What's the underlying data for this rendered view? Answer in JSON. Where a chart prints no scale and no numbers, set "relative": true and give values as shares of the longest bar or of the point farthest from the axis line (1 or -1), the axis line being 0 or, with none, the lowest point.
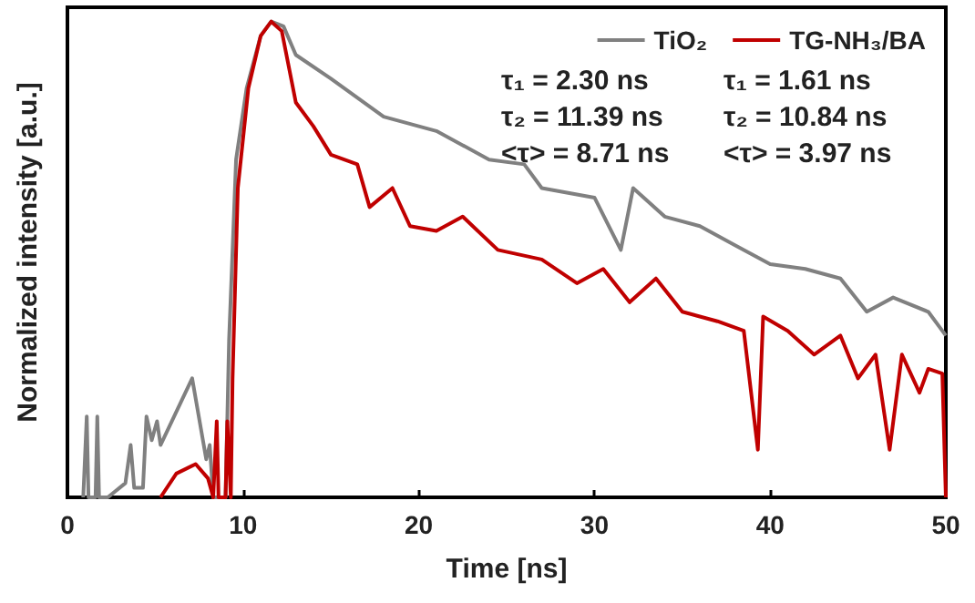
{
  "chart_data": {
    "type": "line",
    "xlabel": "Time [ns]",
    "ylabel": "Normalized intensity [a.u.]",
    "xlim": [
      0,
      50
    ],
    "xticks": [
      0,
      10,
      20,
      30,
      40,
      50
    ],
    "relative": true,
    "tick_labels": "x",
    "grid": false,
    "legend": "top right",
    "marker": "none",
    "line_style": "solid",
    "annotations": [
      "τ₁ = 2.30 ns",
      "τ₂ = 11.39 ns",
      "<τ> = 8.71 ns",
      "τ₁ = 1.61 ns",
      "τ₂ = 10.84 ns",
      "<τ> = 3.97 ns"
    ],
    "series": [
      {
        "name": "TiO₂",
        "color": "#808080",
        "x": [
          0.9,
          1.1,
          1.2,
          1.6,
          1.7,
          1.8,
          2.3,
          3.3,
          3.6,
          3.8,
          4.3,
          4.5,
          4.8,
          5.1,
          5.3,
          7.1,
          7.9,
          8.1,
          8.3,
          9.0,
          9.2,
          9.6,
          10.2,
          11,
          11.6,
          12.3,
          13,
          15,
          18,
          21,
          24,
          26,
          27,
          30,
          31.5,
          32.2,
          34,
          36,
          38,
          40,
          42,
          44,
          45.5,
          47,
          49,
          50
        ],
        "values": [
          0,
          0.17,
          0,
          0,
          0.17,
          0,
          0,
          0.03,
          0.11,
          0.02,
          0.02,
          0.17,
          0.12,
          0.16,
          0.11,
          0.25,
          0.08,
          0.11,
          0,
          0,
          0.33,
          0.71,
          0.86,
          0.97,
          1,
          0.99,
          0.93,
          0.88,
          0.8,
          0.77,
          0.71,
          0.7,
          0.65,
          0.63,
          0.52,
          0.65,
          0.59,
          0.57,
          0.53,
          0.49,
          0.48,
          0.46,
          0.39,
          0.42,
          0.39,
          0.34
        ]
      },
      {
        "name": "TG-NH₃/BA",
        "color": "#c00000",
        "x": [
          5.3,
          6.2,
          7.3,
          8.0,
          8.3,
          8.5,
          8.6,
          9.0,
          9.1,
          9.3,
          9.4,
          9.7,
          10.3,
          11,
          11.6,
          12.2,
          13,
          14,
          15,
          16.5,
          17.2,
          18.5,
          19.5,
          21,
          22.5,
          24.5,
          27,
          29,
          30.5,
          32,
          33.5,
          35,
          37,
          38.5,
          39.3,
          39.6,
          41,
          42.5,
          44,
          45,
          46,
          46.8,
          47.5,
          48.5,
          49,
          49.8,
          50
        ],
        "values": [
          0,
          0.05,
          0.07,
          0.04,
          0,
          0.16,
          0,
          0,
          0.16,
          0,
          0.25,
          0.65,
          0.86,
          0.97,
          1,
          0.98,
          0.83,
          0.78,
          0.72,
          0.7,
          0.61,
          0.65,
          0.57,
          0.56,
          0.59,
          0.52,
          0.5,
          0.45,
          0.48,
          0.41,
          0.46,
          0.39,
          0.37,
          0.35,
          0.1,
          0.38,
          0.35,
          0.3,
          0.34,
          0.25,
          0.3,
          0.1,
          0.3,
          0.22,
          0.27,
          0.26,
          0
        ]
      }
    ]
  }
}
